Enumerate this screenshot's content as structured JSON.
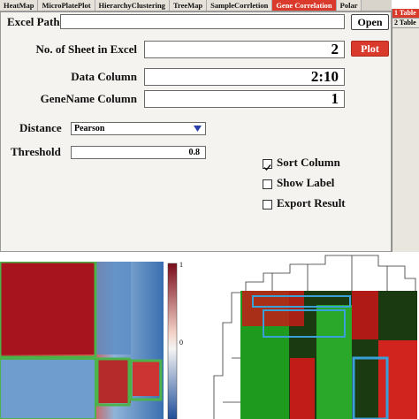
{
  "tabs": {
    "items": [
      "HeatMap",
      "MicroPlatePlot",
      "HierarchyClustering",
      "TreeMap",
      "SampleCorrletion",
      "Gene Correlation",
      "Polar"
    ],
    "active": 5
  },
  "side_tabs": {
    "items": [
      "1 Table",
      "2 Table"
    ],
    "active": 0
  },
  "form": {
    "excel_path": {
      "label": "Excel Path"
    },
    "open_button": "Open",
    "sheet": {
      "label": "No. of Sheet in Excel",
      "value": "2"
    },
    "plot_button": "Plot",
    "data_column": {
      "label": "Data Column",
      "value": "2:10"
    },
    "genename_column": {
      "label": "GeneName Column",
      "value": "1"
    },
    "distance": {
      "label": "Distance",
      "value": "Pearson"
    },
    "threshold": {
      "label": "Threshold",
      "value": "0.8"
    },
    "checkboxes": [
      {
        "label": "Sort Column",
        "checked": true
      },
      {
        "label": "Show Label",
        "checked": false
      },
      {
        "label": "Export Result",
        "checked": false
      }
    ]
  },
  "colorbar": {
    "labels": [
      "1",
      "0"
    ]
  }
}
